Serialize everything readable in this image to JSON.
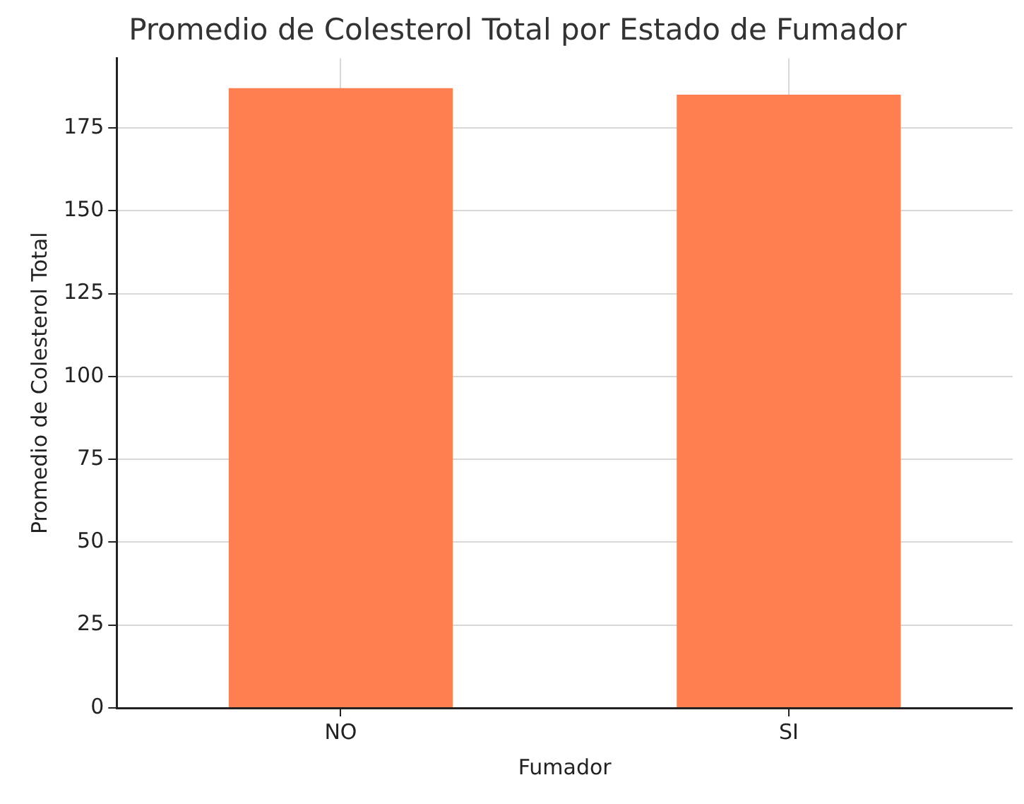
{
  "chart_data": {
    "type": "bar",
    "title": "Promedio de Colesterol Total por Estado de Fumador",
    "xlabel": "Fumador",
    "ylabel": "Promedio de Colesterol Total",
    "categories": [
      "NO",
      "SI"
    ],
    "values": [
      187,
      185
    ],
    "color": "#ff7f50",
    "ylim": [
      0,
      196
    ],
    "yticks": [
      0,
      25,
      50,
      75,
      100,
      125,
      150,
      175
    ],
    "grid": true,
    "legend": false
  }
}
